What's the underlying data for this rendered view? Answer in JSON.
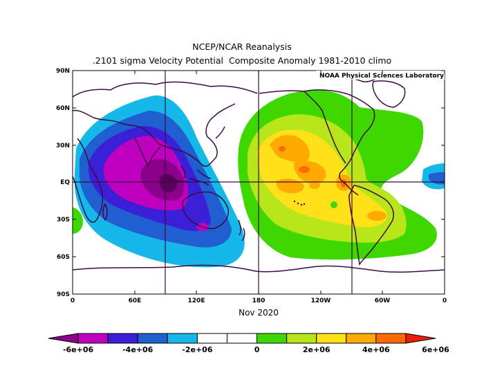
{
  "title": "NCEP/NCAR Reanalysis",
  "subtitle": ".2101 sigma Velocity Potential  Composite Anomaly 1981-2010 climo",
  "credit": "NOAA Physical Sciences Laboratory",
  "period": "Nov 2020",
  "y_ticks": [
    "90N",
    "60N",
    "30N",
    "EQ",
    "30S",
    "60S",
    "90S"
  ],
  "x_ticks": [
    "0",
    "60E",
    "120E",
    "180",
    "120W",
    "60W",
    "0"
  ],
  "colorbar": {
    "colors": [
      "#8b008b",
      "#bf00bf",
      "#3a1fd6",
      "#1f5fcf",
      "#15b8e8",
      "#ffffff",
      "#ffffff",
      "#3ed800",
      "#b8e61a",
      "#ffe11a",
      "#ffaa00",
      "#ff6a00",
      "#e81e0e"
    ],
    "labels": [
      "-6e+06",
      "-4e+06",
      "-2e+06",
      "0",
      "2e+06",
      "4e+06",
      "6e+06"
    ]
  }
}
